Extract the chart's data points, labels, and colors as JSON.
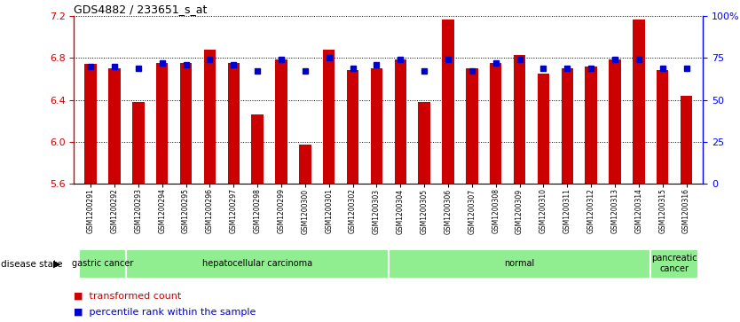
{
  "title": "GDS4882 / 233651_s_at",
  "samples": [
    "GSM1200291",
    "GSM1200292",
    "GSM1200293",
    "GSM1200294",
    "GSM1200295",
    "GSM1200296",
    "GSM1200297",
    "GSM1200298",
    "GSM1200299",
    "GSM1200300",
    "GSM1200301",
    "GSM1200302",
    "GSM1200303",
    "GSM1200304",
    "GSM1200305",
    "GSM1200306",
    "GSM1200307",
    "GSM1200308",
    "GSM1200309",
    "GSM1200310",
    "GSM1200311",
    "GSM1200312",
    "GSM1200313",
    "GSM1200314",
    "GSM1200315",
    "GSM1200316"
  ],
  "bar_values": [
    6.74,
    6.7,
    6.38,
    6.75,
    6.75,
    6.88,
    6.75,
    6.26,
    6.79,
    5.97,
    6.88,
    6.68,
    6.7,
    6.79,
    6.38,
    7.17,
    6.7,
    6.75,
    6.83,
    6.65,
    6.7,
    6.72,
    6.79,
    7.17,
    6.68,
    6.44
  ],
  "percentile_pct": [
    70,
    70,
    69,
    72,
    71,
    74,
    71,
    67,
    74,
    67,
    75,
    69,
    71,
    74,
    67,
    74,
    67,
    72,
    74,
    69,
    69,
    69,
    74,
    74,
    69,
    69
  ],
  "disease_groups": [
    {
      "label": "gastric cancer",
      "start": 0,
      "end": 2
    },
    {
      "label": "hepatocellular carcinoma",
      "start": 2,
      "end": 13
    },
    {
      "label": "normal",
      "start": 13,
      "end": 24
    },
    {
      "label": "pancreatic\ncancer",
      "start": 24,
      "end": 26
    }
  ],
  "ylim_left": [
    5.6,
    7.2
  ],
  "yticks_left": [
    5.6,
    6.0,
    6.4,
    6.8,
    7.2
  ],
  "ylim_right": [
    0,
    100
  ],
  "yticks_right": [
    0,
    25,
    50,
    75,
    100
  ],
  "bar_color": "#cc0000",
  "percentile_color": "#0000cc",
  "bar_bottom": 5.6,
  "group_color": "#90ee90",
  "legend_bar_label": "transformed count",
  "legend_dot_label": "percentile rank within the sample",
  "disease_state_label": "disease state"
}
